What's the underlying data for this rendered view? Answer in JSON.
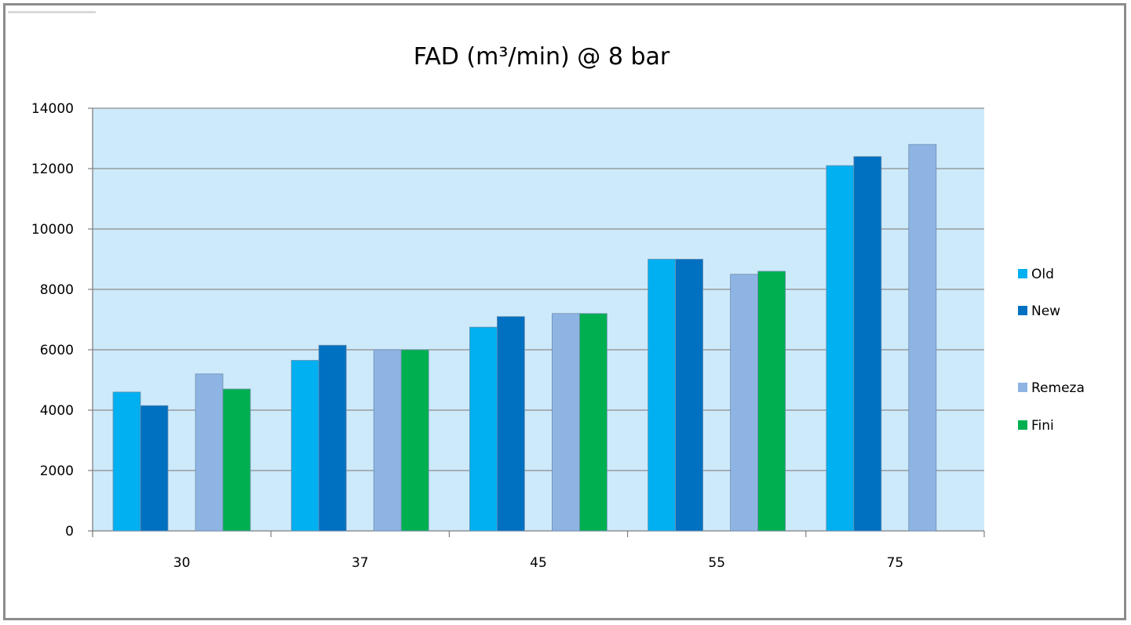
{
  "chart_data": {
    "type": "bar",
    "title": "FAD (m³/min) @ 8 bar",
    "xlabel": "",
    "ylabel": "",
    "categories": [
      "30",
      "37",
      "45",
      "55",
      "75"
    ],
    "ylim": [
      0,
      14000
    ],
    "yticks": [
      0,
      2000,
      4000,
      6000,
      8000,
      10000,
      12000,
      14000
    ],
    "grid": true,
    "legend_position": "right",
    "plot_background": "#cdeafb",
    "series": [
      {
        "name": "Old",
        "color": "#00b0f0",
        "values": [
          4600,
          5650,
          6750,
          9000,
          12100
        ]
      },
      {
        "name": "New",
        "color": "#0070c0",
        "values": [
          4150,
          6150,
          7100,
          9000,
          12400
        ]
      },
      {
        "name": "Remeza",
        "color": "#8eb4e3",
        "values": [
          5200,
          6000,
          7200,
          8500,
          12800
        ]
      },
      {
        "name": "Fini",
        "color": "#00b050",
        "values": [
          4700,
          6000,
          7200,
          8600,
          null
        ]
      }
    ]
  }
}
